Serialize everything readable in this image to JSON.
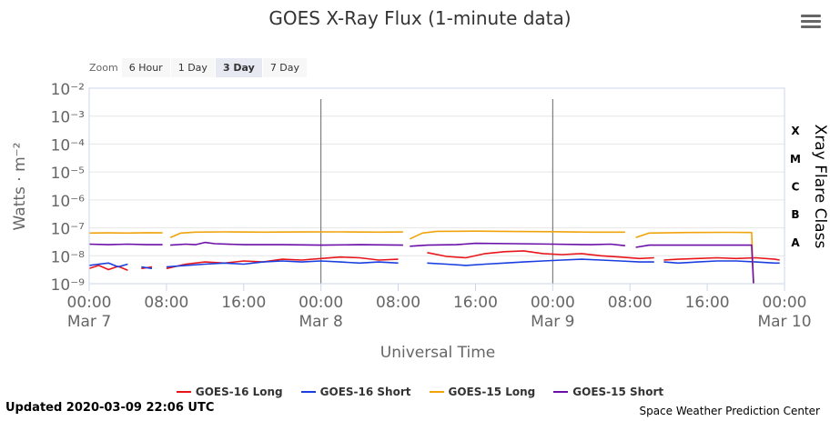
{
  "header": {
    "title": "GOES X-Ray Flux (1-minute data)"
  },
  "zoom": {
    "label": "Zoom",
    "buttons": [
      "6 Hour",
      "1 Day",
      "3 Day",
      "7 Day"
    ],
    "active": "3 Day"
  },
  "footer": {
    "updated": "Updated 2020-03-09 22:06 UTC",
    "credit": "Space Weather Prediction Center"
  },
  "colors": {
    "goes16_long": "#e8161b",
    "goes16_short": "#1a3fe0",
    "goes15_long": "#f0a30a",
    "goes15_short": "#6a0fa8",
    "gridline": "#e6e6e6",
    "axis": "#ccd6eb",
    "marker_line": "#666666"
  },
  "chart_data": {
    "type": "line",
    "xlabel": "Universal Time",
    "ylabel": "Watts · m⁻²",
    "y_right_label": "Xray Flare Class",
    "y_scale": "log",
    "ylim": [
      1e-09,
      0.01
    ],
    "xlim_hours": [
      0,
      72
    ],
    "x_unit": "hours since 2020-03-07 00:00 UTC",
    "y_tick_labels": [
      "10⁻⁹",
      "10⁻⁸",
      "10⁻⁷",
      "10⁻⁶",
      "10⁻⁵",
      "10⁻⁴",
      "10⁻³",
      "10⁻²"
    ],
    "x_tick_labels": [
      {
        "time": "00:00",
        "date": "Mar 7"
      },
      {
        "time": "08:00",
        "date": ""
      },
      {
        "time": "16:00",
        "date": ""
      },
      {
        "time": "00:00",
        "date": "Mar 8"
      },
      {
        "time": "08:00",
        "date": ""
      },
      {
        "time": "16:00",
        "date": ""
      },
      {
        "time": "00:00",
        "date": "Mar 9"
      },
      {
        "time": "08:00",
        "date": ""
      },
      {
        "time": "16:00",
        "date": ""
      },
      {
        "time": "00:00",
        "date": "Mar 10"
      }
    ],
    "x_tick_hours": [
      0,
      8,
      16,
      24,
      32,
      40,
      48,
      56,
      64,
      72
    ],
    "day_markers_hours": [
      24,
      48
    ],
    "flare_classes": [
      "A",
      "B",
      "C",
      "M",
      "X"
    ],
    "legend": [
      "GOES-16 Long",
      "GOES-16 Short",
      "GOES-15 Long",
      "GOES-15 Short"
    ],
    "grid": "horizontal",
    "series": [
      {
        "name": "GOES-16 Long",
        "color": "#e8161b",
        "segments": [
          [
            [
              0,
              3.5e-09
            ],
            [
              1,
              4.5e-09
            ],
            [
              2,
              3.2e-09
            ],
            [
              3,
              4.2e-09
            ],
            [
              4,
              3e-09
            ]
          ],
          [
            [
              5.4,
              3.5e-09
            ],
            [
              6.5,
              4e-09
            ]
          ],
          [
            [
              8,
              3.5e-09
            ],
            [
              10,
              5e-09
            ],
            [
              12,
              6e-09
            ],
            [
              14,
              5.5e-09
            ],
            [
              16,
              6.5e-09
            ],
            [
              18,
              6e-09
            ],
            [
              20,
              7.5e-09
            ],
            [
              22,
              7e-09
            ],
            [
              24,
              8e-09
            ],
            [
              26,
              9e-09
            ],
            [
              28,
              8.5e-09
            ],
            [
              30,
              7e-09
            ],
            [
              32,
              7.5e-09
            ]
          ],
          [
            [
              35,
              1.3e-08
            ],
            [
              37,
              9.5e-09
            ],
            [
              39,
              8.5e-09
            ],
            [
              41,
              1.2e-08
            ],
            [
              43,
              1.4e-08
            ],
            [
              45,
              1.5e-08
            ],
            [
              47,
              1.2e-08
            ],
            [
              49,
              1.1e-08
            ],
            [
              51,
              1.2e-08
            ],
            [
              53,
              1e-08
            ],
            [
              55,
              9e-09
            ],
            [
              57,
              8e-09
            ],
            [
              58.5,
              8.5e-09
            ]
          ],
          [
            [
              59.5,
              7e-09
            ],
            [
              61,
              7.5e-09
            ],
            [
              63,
              8e-09
            ],
            [
              65,
              8.5e-09
            ],
            [
              67,
              8e-09
            ],
            [
              69,
              8.5e-09
            ],
            [
              71,
              7.5e-09
            ],
            [
              71.5,
              7e-09
            ]
          ]
        ]
      },
      {
        "name": "GOES-16 Short",
        "color": "#1a3fe0",
        "segments": [
          [
            [
              0,
              4.5e-09
            ],
            [
              1,
              5e-09
            ],
            [
              2,
              5.5e-09
            ],
            [
              3,
              4e-09
            ],
            [
              4,
              5e-09
            ]
          ],
          [
            [
              5.4,
              4e-09
            ],
            [
              6.5,
              3.5e-09
            ]
          ],
          [
            [
              8,
              4e-09
            ],
            [
              10,
              4.5e-09
            ],
            [
              12,
              5e-09
            ],
            [
              14,
              5.5e-09
            ],
            [
              16,
              5e-09
            ],
            [
              18,
              6e-09
            ],
            [
              20,
              6.5e-09
            ],
            [
              22,
              6e-09
            ],
            [
              24,
              6.5e-09
            ],
            [
              26,
              6e-09
            ],
            [
              28,
              5.5e-09
            ],
            [
              30,
              6e-09
            ],
            [
              32,
              5.5e-09
            ]
          ],
          [
            [
              35,
              5.5e-09
            ],
            [
              37,
              5e-09
            ],
            [
              39,
              4.5e-09
            ],
            [
              41,
              5e-09
            ],
            [
              43,
              5.5e-09
            ],
            [
              45,
              6e-09
            ],
            [
              47,
              6.5e-09
            ],
            [
              49,
              7e-09
            ],
            [
              51,
              7.5e-09
            ],
            [
              53,
              7e-09
            ],
            [
              55,
              6.5e-09
            ],
            [
              57,
              6e-09
            ],
            [
              58.5,
              6e-09
            ]
          ],
          [
            [
              59.5,
              6e-09
            ],
            [
              61,
              5.5e-09
            ],
            [
              63,
              6e-09
            ],
            [
              65,
              6.5e-09
            ],
            [
              67,
              6.5e-09
            ],
            [
              69,
              6e-09
            ],
            [
              71,
              5.5e-09
            ],
            [
              71.5,
              5.5e-09
            ]
          ]
        ]
      },
      {
        "name": "GOES-15 Long",
        "color": "#f0a30a",
        "segments": [
          [
            [
              0,
              6.5e-08
            ],
            [
              2,
              6.6e-08
            ],
            [
              4,
              6.5e-08
            ],
            [
              6,
              6.7e-08
            ],
            [
              7.6,
              6.6e-08
            ]
          ],
          [
            [
              8.4,
              4.5e-08
            ],
            [
              9.5,
              6.5e-08
            ],
            [
              11,
              7e-08
            ],
            [
              14,
              7.2e-08
            ],
            [
              18,
              7e-08
            ],
            [
              22,
              7.1e-08
            ],
            [
              26,
              7.2e-08
            ],
            [
              30,
              7e-08
            ],
            [
              32.5,
              7.1e-08
            ]
          ],
          [
            [
              33.2,
              4e-08
            ],
            [
              34.5,
              6.5e-08
            ],
            [
              36,
              7.5e-08
            ],
            [
              40,
              7.6e-08
            ],
            [
              44,
              7.4e-08
            ],
            [
              48,
              7.3e-08
            ],
            [
              52,
              7e-08
            ],
            [
              55.5,
              7e-08
            ]
          ],
          [
            [
              56.6,
              4.5e-08
            ],
            [
              58,
              6.5e-08
            ],
            [
              62,
              6.8e-08
            ],
            [
              66,
              6.9e-08
            ],
            [
              68.6,
              6.8e-08
            ],
            [
              68.8,
              1e-09
            ]
          ]
        ]
      },
      {
        "name": "GOES-15 Short",
        "color": "#6a0fa8",
        "segments": [
          [
            [
              0,
              2.6e-08
            ],
            [
              2,
              2.5e-08
            ],
            [
              4,
              2.6e-08
            ],
            [
              6,
              2.5e-08
            ],
            [
              7.6,
              2.5e-08
            ]
          ],
          [
            [
              8.4,
              2.4e-08
            ],
            [
              10,
              2.6e-08
            ],
            [
              11,
              2.5e-08
            ],
            [
              12,
              3e-08
            ],
            [
              13,
              2.7e-08
            ],
            [
              16,
              2.5e-08
            ],
            [
              20,
              2.5e-08
            ],
            [
              24,
              2.4e-08
            ],
            [
              28,
              2.5e-08
            ],
            [
              32.5,
              2.4e-08
            ]
          ],
          [
            [
              33.2,
              2.2e-08
            ],
            [
              35,
              2.4e-08
            ],
            [
              38,
              2.5e-08
            ],
            [
              40,
              2.8e-08
            ],
            [
              44,
              2.7e-08
            ],
            [
              48,
              2.6e-08
            ],
            [
              52,
              2.5e-08
            ],
            [
              54,
              2.6e-08
            ],
            [
              55.5,
              2.3e-08
            ]
          ],
          [
            [
              56.6,
              2e-08
            ],
            [
              58,
              2.4e-08
            ],
            [
              62,
              2.4e-08
            ],
            [
              66,
              2.4e-08
            ],
            [
              68.6,
              2.4e-08
            ],
            [
              68.8,
              1e-09
            ]
          ]
        ]
      }
    ]
  }
}
